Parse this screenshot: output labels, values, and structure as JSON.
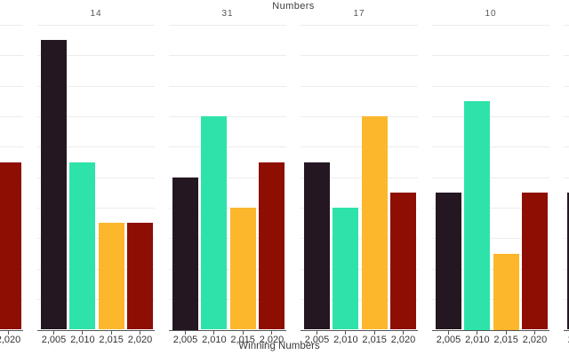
{
  "chart_data": {
    "type": "bar",
    "title": "Numbers",
    "xlabel": "Winning Numbers",
    "x_tick_labels": [
      "2,005",
      "2,010",
      "2,015",
      "2,020"
    ],
    "x_values": [
      2005,
      2010,
      2015,
      2020
    ],
    "ylim": [
      0,
      20
    ],
    "grid_step": 2,
    "grid": true,
    "legend": "none",
    "bar_colors": [
      "#241722",
      "#2ee3a9",
      "#fcb72d",
      "#8e0e03"
    ],
    "facets": [
      {
        "label": "",
        "note": "clipped-left-edge-panel",
        "values": [
          null,
          null,
          null,
          11
        ]
      },
      {
        "label": "14",
        "values": [
          19,
          11,
          7,
          7
        ]
      },
      {
        "label": "31",
        "values": [
          10,
          14,
          8,
          11
        ]
      },
      {
        "label": "17",
        "values": [
          11,
          8,
          14,
          9
        ]
      },
      {
        "label": "10",
        "values": [
          9,
          15,
          5,
          9
        ]
      },
      {
        "label": "",
        "note": "clipped-right-edge-panel",
        "values": [
          9,
          null,
          null,
          null
        ]
      }
    ]
  }
}
